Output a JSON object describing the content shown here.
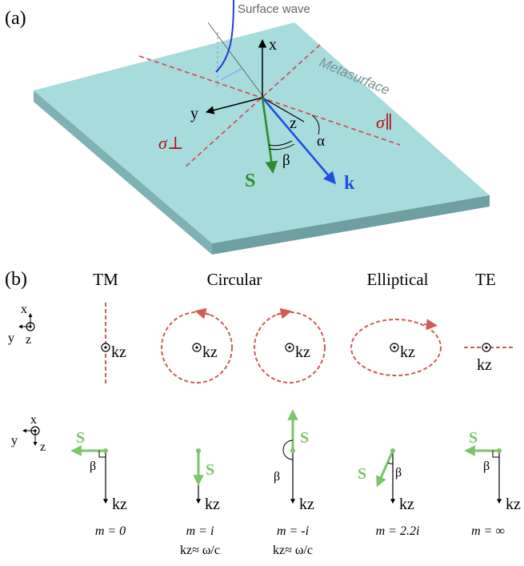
{
  "panel_a": {
    "label": "(a)",
    "surface_wave": "Surface wave",
    "metasurface": "Metasurface",
    "axis_x": "x",
    "axis_y": "y",
    "axis_z": "z",
    "alpha": "α",
    "beta": "β",
    "sigma_perp": "σ⊥",
    "sigma_par": "σ∥",
    "vec_S": "S",
    "vec_k": "k"
  },
  "panel_b": {
    "label": "(b)",
    "legend_x": "x",
    "legend_y": "y",
    "legend_z": "z",
    "columns": [
      {
        "title": "TM",
        "pol_label": "kz",
        "S": "S",
        "beta": "β",
        "k": "kz",
        "m": "m = 0",
        "approx": ""
      },
      {
        "title": "Circular",
        "pol_label": "kz",
        "S": "S",
        "beta": "",
        "k": "kz",
        "m": "m = i",
        "approx": "kz≈ ω/c"
      },
      {
        "title": "",
        "pol_label": "kz",
        "S": "S",
        "beta": "β",
        "k": "kz",
        "m": "m = -i",
        "approx": "kz≈ ω/c"
      },
      {
        "title": "Elliptical",
        "pol_label": "kz",
        "S": "S",
        "beta": "β",
        "k": "kz",
        "m": "m = 2.2i",
        "approx": ""
      },
      {
        "title": "TE",
        "pol_label": "kz",
        "S": "S",
        "beta": "β",
        "k": "kz",
        "m": "m = ∞",
        "approx": ""
      }
    ]
  },
  "colors": {
    "surface_top": "#a8dcdc",
    "surface_side": "#6f9ea3",
    "dashed_red": "#d6454f",
    "ellipse_red": "#d45a55",
    "green_S": "#2e8b2e",
    "light_green": "#7cc36a",
    "blue_k": "#1f4fe0",
    "sigma_red": "#b0101a"
  }
}
